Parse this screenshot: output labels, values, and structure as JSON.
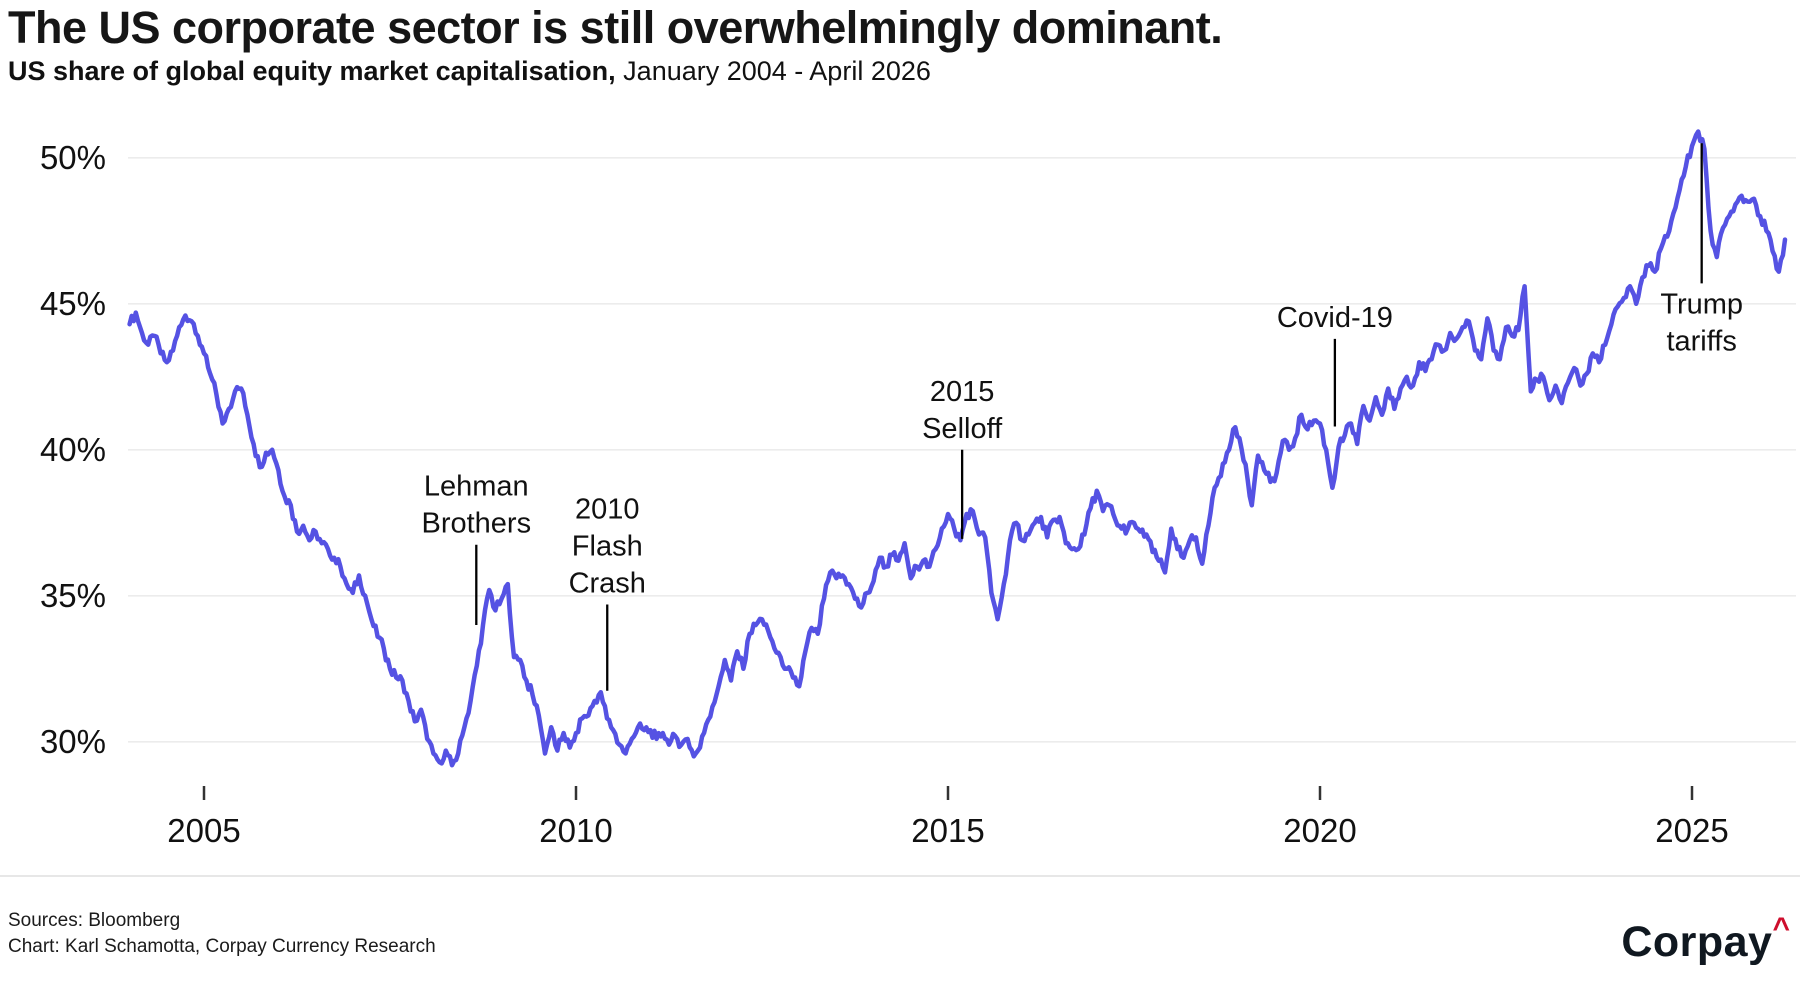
{
  "header": {
    "title": "The US corporate sector is still overwhelmingly dominant.",
    "subtitle_bold": "US share of global equity market capitalisation,",
    "subtitle_regular": " January 2004 - April 2026"
  },
  "chart": {
    "line_color": "#5552e3",
    "grid_color": "#ececec",
    "tick_color": "#333333",
    "text_color": "#111111",
    "annotation_line_color": "#000000",
    "y_ticks": [
      {
        "value": 30,
        "label": "30%"
      },
      {
        "value": 35,
        "label": "35%"
      },
      {
        "value": 40,
        "label": "40%"
      },
      {
        "value": 45,
        "label": "45%"
      },
      {
        "value": 50,
        "label": "50%"
      }
    ],
    "x_ticks": [
      {
        "year": 2005,
        "label": "2005"
      },
      {
        "year": 2010,
        "label": "2010"
      },
      {
        "year": 2015,
        "label": "2015"
      },
      {
        "year": 2020,
        "label": "2020"
      },
      {
        "year": 2025,
        "label": "2025"
      }
    ],
    "annotations": [
      {
        "id": "lehman-brothers",
        "labels": [
          "Lehman",
          "Brothers"
        ],
        "x_year": 2008.66,
        "line_top_value": 36.75,
        "line_bottom_value": 34.0,
        "label_position": "above"
      },
      {
        "id": "flash-crash-2010",
        "labels": [
          "2010",
          "Flash",
          "Crash"
        ],
        "x_year": 2010.42,
        "line_top_value": 34.7,
        "line_bottom_value": 31.75,
        "label_position": "above"
      },
      {
        "id": "selloff-2015",
        "labels": [
          "2015",
          "Selloff"
        ],
        "x_year": 2015.19,
        "line_top_value": 40.0,
        "line_bottom_value": 36.95,
        "label_position": "above"
      },
      {
        "id": "covid-19",
        "labels": [
          "Covid-19"
        ],
        "x_year": 2020.2,
        "line_top_value": 43.8,
        "line_bottom_value": 40.8,
        "label_position": "above"
      },
      {
        "id": "trump-tariffs",
        "labels": [
          "Trump",
          "tariffs"
        ],
        "x_year": 2025.13,
        "line_top_value": 50.5,
        "line_bottom_value": 45.7,
        "label_position": "below"
      }
    ]
  },
  "chart_data": {
    "type": "line",
    "title": "US share of global equity market capitalisation",
    "x_range_label": "January 2004 - April 2026",
    "x_start_year": 2004,
    "x_step_years": 0.083333,
    "y_unit": "%",
    "ylim": [
      28.5,
      52
    ],
    "xlim": [
      2004.0,
      2026.33
    ],
    "grid": "horizontal-only",
    "legend": "none",
    "series": [
      {
        "name": "US share of global equity market capitalisation (%)",
        "frequency": "monthly",
        "values": [
          44.3,
          44.7,
          44.0,
          43.6,
          43.9,
          43.3,
          43.0,
          43.4,
          44.2,
          44.6,
          44.4,
          43.9,
          43.3,
          42.6,
          41.9,
          40.9,
          41.4,
          42.0,
          42.1,
          41.2,
          40.2,
          39.4,
          39.9,
          40.0,
          39.3,
          38.4,
          38.1,
          37.2,
          37.4,
          36.9,
          37.2,
          36.8,
          36.6,
          36.3,
          36.0,
          35.4,
          35.1,
          35.7,
          35.0,
          34.2,
          33.6,
          33.2,
          32.5,
          32.2,
          32.1,
          31.4,
          30.7,
          31.1,
          30.1,
          29.6,
          29.3,
          29.7,
          29.2,
          29.6,
          30.5,
          31.4,
          32.6,
          34.0,
          35.2,
          34.5,
          34.9,
          35.4,
          32.9,
          32.8,
          32.1,
          31.6,
          30.9,
          29.6,
          30.5,
          29.7,
          30.3,
          29.8,
          30.3,
          30.8,
          30.9,
          31.4,
          31.7,
          30.8,
          30.4,
          29.9,
          29.6,
          30.1,
          30.5,
          30.4,
          30.4,
          30.1,
          30.3,
          29.9,
          30.2,
          29.9,
          30.1,
          29.5,
          29.8,
          30.6,
          31.2,
          31.9,
          32.8,
          32.1,
          33.1,
          32.5,
          33.7,
          34.0,
          34.2,
          33.8,
          33.2,
          32.9,
          32.5,
          32.2,
          31.9,
          33.1,
          33.9,
          33.7,
          34.9,
          35.8,
          35.6,
          35.7,
          35.4,
          34.9,
          34.6,
          35.1,
          35.5,
          36.3,
          36.0,
          36.4,
          36.2,
          36.8,
          35.6,
          36.0,
          36.2,
          36.0,
          36.6,
          37.3,
          37.8,
          37.3,
          36.9,
          37.8,
          37.9,
          37.1,
          37.0,
          35.1,
          34.2,
          35.4,
          36.9,
          37.5,
          36.9,
          37.1,
          37.5,
          37.7,
          37.0,
          37.6,
          37.7,
          36.8,
          36.6,
          36.6,
          37.1,
          38.0,
          38.6,
          37.9,
          38.1,
          37.6,
          37.3,
          37.3,
          37.5,
          37.2,
          37.1,
          36.5,
          36.2,
          35.8,
          37.3,
          36.6,
          36.3,
          36.9,
          37.0,
          36.1,
          37.4,
          38.7,
          39.1,
          39.9,
          40.7,
          40.4,
          39.5,
          38.1,
          39.8,
          39.3,
          38.9,
          39.2,
          40.3,
          40.0,
          40.4,
          41.2,
          40.7,
          41.0,
          40.9,
          40.0,
          38.7,
          40.1,
          40.5,
          40.9,
          40.2,
          41.5,
          41.0,
          41.8,
          41.2,
          42.1,
          41.4,
          42.1,
          42.5,
          42.2,
          43.0,
          42.7,
          43.1,
          43.6,
          43.4,
          44.0,
          43.8,
          44.2,
          44.4,
          43.4,
          43.1,
          44.5,
          43.4,
          43.1,
          44.2,
          43.9,
          44.1,
          45.6,
          42.0,
          42.4,
          42.5,
          41.7,
          42.2,
          41.6,
          42.3,
          42.8,
          42.2,
          42.6,
          43.3,
          43.0,
          43.6,
          44.3,
          44.9,
          45.2,
          45.6,
          45.0,
          45.9,
          46.3,
          46.1,
          46.9,
          47.3,
          48.1,
          48.9,
          49.7,
          50.4,
          50.9,
          50.3,
          47.5,
          46.6,
          47.6,
          48.0,
          48.4,
          48.7,
          48.5,
          48.6,
          48.0,
          47.5,
          46.8,
          46.1,
          47.2
        ]
      }
    ]
  },
  "footer": {
    "sources_line": "Sources: Bloomberg",
    "chart_line": "Chart: Karl Schamotta, Corpay Currency Research",
    "logo_text": "Corpay",
    "logo_mark": "^"
  }
}
